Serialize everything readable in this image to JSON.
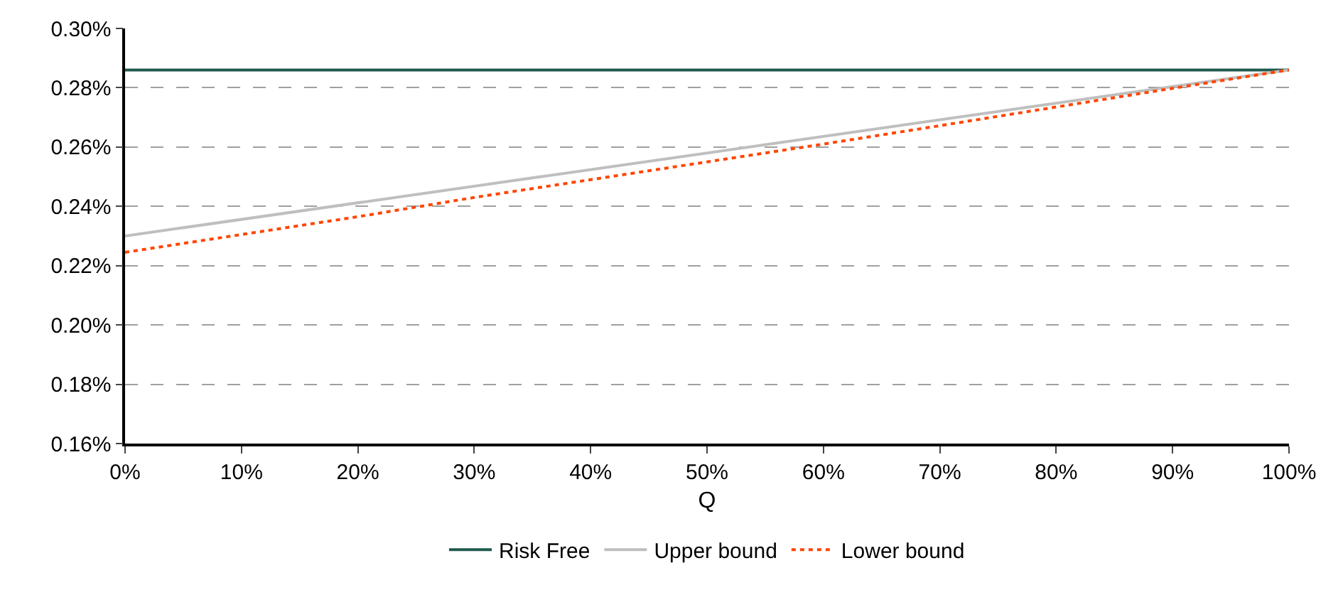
{
  "chart_data": {
    "type": "line",
    "xlabel": "Q",
    "xlim": [
      0,
      100
    ],
    "xticks": [
      {
        "value": 0,
        "label": "0%"
      },
      {
        "value": 10,
        "label": "10%"
      },
      {
        "value": 20,
        "label": "20%"
      },
      {
        "value": 30,
        "label": "30%"
      },
      {
        "value": 40,
        "label": "40%"
      },
      {
        "value": 50,
        "label": "50%"
      },
      {
        "value": 60,
        "label": "60%"
      },
      {
        "value": 70,
        "label": "70%"
      },
      {
        "value": 80,
        "label": "80%"
      },
      {
        "value": 90,
        "label": "90%"
      },
      {
        "value": 100,
        "label": "100%"
      }
    ],
    "ylim": [
      0.16,
      0.3
    ],
    "yticks": [
      {
        "value": 0.16,
        "label": "0.16%"
      },
      {
        "value": 0.18,
        "label": "0.18%"
      },
      {
        "value": 0.2,
        "label": "0.20%"
      },
      {
        "value": 0.22,
        "label": "0.22%"
      },
      {
        "value": 0.24,
        "label": "0.24%"
      },
      {
        "value": 0.26,
        "label": "0.26%"
      },
      {
        "value": 0.28,
        "label": "0.28%"
      },
      {
        "value": 0.3,
        "label": "0.30%"
      }
    ],
    "grid": "y",
    "legend": "bottom",
    "series": [
      {
        "name": "Risk Free",
        "color": "#1f5a4e",
        "x": [
          0,
          100
        ],
        "values": [
          0.286,
          0.286
        ],
        "line_style": "solid"
      },
      {
        "name": "Upper bound",
        "color": "#bfbfbf",
        "x": [
          0,
          100
        ],
        "values": [
          0.23,
          0.286
        ],
        "line_style": "solid"
      },
      {
        "name": "Lower bound",
        "color": "#ff4500",
        "x": [
          0,
          10,
          20,
          30,
          40,
          50,
          60,
          70,
          80,
          90,
          100
        ],
        "values": [
          0.2245,
          0.2305,
          0.2365,
          0.243,
          0.249,
          0.255,
          0.261,
          0.2672,
          0.2735,
          0.2798,
          0.286
        ],
        "line_style": "dotted"
      }
    ]
  }
}
